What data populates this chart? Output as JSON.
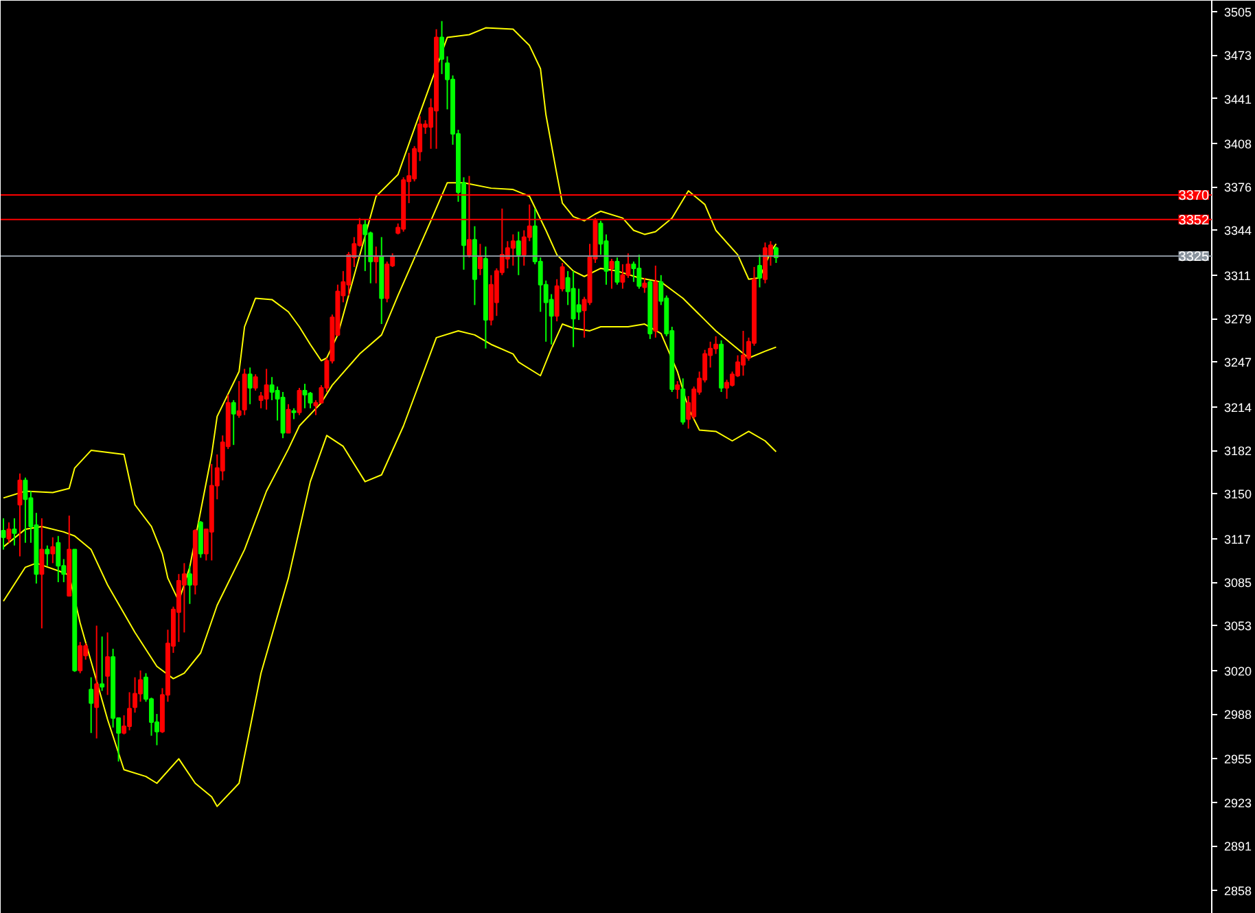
{
  "chart_data": {
    "type": "candlestick",
    "categories": [
      null,
      null,
      null,
      null,
      null,
      null,
      null,
      null,
      null,
      null,
      null,
      null,
      null,
      null,
      null,
      null,
      null,
      null,
      null,
      null,
      null,
      null,
      null,
      null,
      null,
      null,
      null,
      null,
      null,
      null,
      null,
      null,
      null,
      null,
      null,
      null,
      null,
      null,
      null,
      null,
      null,
      null,
      null,
      null,
      null,
      null,
      null,
      null,
      null,
      null,
      null,
      null,
      null,
      null,
      null,
      null,
      null,
      null,
      null,
      null,
      null,
      null,
      null,
      null,
      null,
      null,
      null,
      null,
      null,
      null,
      null,
      null,
      null,
      null,
      null,
      null,
      null,
      null,
      null,
      null,
      null,
      null,
      null,
      null,
      null,
      null,
      null,
      null,
      null,
      null,
      null,
      null,
      null,
      null,
      null,
      null,
      null,
      null,
      null,
      null,
      null,
      null,
      null,
      null,
      null,
      null,
      null,
      null,
      null,
      null,
      null,
      null,
      null,
      null,
      null,
      null,
      null,
      null,
      null,
      null,
      null,
      null,
      null,
      null,
      null,
      null,
      null,
      null,
      null,
      null,
      null,
      null,
      null,
      null,
      null,
      null,
      null,
      null,
      null,
      null,
      null,
      null,
      null,
      null,
      null,
      null,
      null,
      null,
      null,
      null,
      null,
      null,
      null,
      null,
      null,
      null,
      null,
      null,
      null,
      null,
      null,
      null,
      null,
      null,
      null,
      null,
      null,
      null,
      null,
      null,
      null,
      null,
      null,
      null,
      null,
      null,
      null,
      null,
      null,
      null,
      null,
      null,
      null,
      null,
      null,
      null,
      null,
      null,
      null,
      null,
      null,
      null,
      null,
      null,
      null,
      null,
      null,
      null,
      null,
      null,
      null,
      null,
      null,
      null,
      null,
      null,
      null,
      null,
      null,
      null,
      null,
      null,
      null,
      null,
      null,
      null,
      null,
      null,
      null,
      null,
      null
    ],
    "ohlc": [
      [
        3123,
        3132,
        3109,
        3118
      ],
      [
        3117,
        3129,
        3114,
        3124
      ],
      [
        3124,
        3132,
        3112,
        3121
      ],
      [
        3142,
        3165,
        3104,
        3160
      ],
      [
        3160,
        3162,
        3114,
        3146
      ],
      [
        3147,
        3152,
        3114,
        3126
      ],
      [
        3127,
        3136,
        3084,
        3091
      ],
      [
        3091,
        3132,
        3051,
        3109
      ],
      [
        3109,
        3112,
        3097,
        3106
      ],
      [
        3106,
        3118,
        3099,
        3111
      ],
      [
        3114,
        3119,
        3085,
        3097
      ],
      [
        3097,
        3102,
        3085,
        3091
      ],
      [
        3075,
        3134,
        3075,
        3109
      ],
      [
        3109,
        3109,
        3019,
        3020
      ],
      [
        3020,
        3041,
        3018,
        3038
      ],
      [
        3031,
        3040,
        3028,
        3038
      ],
      [
        3006,
        3015,
        2974,
        2996
      ],
      [
        2993,
        3053,
        2970,
        3010
      ],
      [
        3010,
        3045,
        3005,
        3008
      ],
      [
        3016,
        3048,
        3002,
        3030
      ],
      [
        3030,
        3036,
        2978,
        2985
      ],
      [
        2985,
        2985,
        2953,
        2974
      ],
      [
        2974,
        2987,
        2973,
        2979
      ],
      [
        2979,
        3004,
        2976,
        2992
      ],
      [
        2993,
        3015,
        2989,
        3003
      ],
      [
        3003,
        3020,
        2997,
        3013
      ],
      [
        3015,
        3018,
        2997,
        2999
      ],
      [
        2999,
        3000,
        2972,
        2982
      ],
      [
        2982,
        2988,
        2965,
        2975
      ],
      [
        2975,
        3007,
        2974,
        3002
      ],
      [
        3002,
        3050,
        2997,
        3040
      ],
      [
        3038,
        3067,
        3033,
        3065
      ],
      [
        3063,
        3091,
        3041,
        3086
      ],
      [
        3083,
        3099,
        3048,
        3091
      ],
      [
        3091,
        3097,
        3069,
        3083
      ],
      [
        3083,
        3124,
        3076,
        3123
      ],
      [
        3129,
        3130,
        3103,
        3106
      ],
      [
        3106,
        3124,
        3101,
        3124
      ],
      [
        3122,
        3172,
        3101,
        3156
      ],
      [
        3156,
        3179,
        3146,
        3169
      ],
      [
        3167,
        3193,
        3160,
        3188
      ],
      [
        3185,
        3223,
        3183,
        3217
      ],
      [
        3217,
        3219,
        3186,
        3209
      ],
      [
        3208,
        3233,
        3206,
        3211
      ],
      [
        3212,
        3242,
        3208,
        3238
      ],
      [
        3238,
        3243,
        3216,
        3228
      ],
      [
        3228,
        3238,
        3226,
        3236
      ],
      [
        3219,
        3225,
        3213,
        3222
      ],
      [
        3220,
        3242,
        3212,
        3230
      ],
      [
        3230,
        3236,
        3219,
        3225
      ],
      [
        3226,
        3229,
        3204,
        3220
      ],
      [
        3221,
        3225,
        3191,
        3195
      ],
      [
        3195,
        3216,
        3195,
        3212
      ],
      [
        3211,
        3213,
        3205,
        3210
      ],
      [
        3210,
        3228,
        3208,
        3226
      ],
      [
        3226,
        3231,
        3213,
        3223
      ],
      [
        3224,
        3225,
        3213,
        3217
      ],
      [
        3215,
        3219,
        3208,
        3217
      ],
      [
        3217,
        3230,
        3217,
        3228
      ],
      [
        3228,
        3250,
        3225,
        3248
      ],
      [
        3248,
        3282,
        3246,
        3280
      ],
      [
        3267,
        3304,
        3266,
        3299
      ],
      [
        3296,
        3314,
        3291,
        3306
      ],
      [
        3304,
        3328,
        3296,
        3326
      ],
      [
        3324,
        3339,
        3317,
        3334
      ],
      [
        3333,
        3353,
        3332,
        3348
      ],
      [
        3348,
        3352,
        3314,
        3341
      ],
      [
        3342,
        3343,
        3305,
        3321
      ],
      [
        3321,
        3332,
        3305,
        3325
      ],
      [
        3325,
        3339,
        3275,
        3294
      ],
      [
        3294,
        3321,
        3291,
        3319
      ],
      [
        3318,
        3327,
        3317,
        3325
      ],
      [
        3342,
        3349,
        3341,
        3346
      ],
      [
        3345,
        3383,
        3343,
        3381
      ],
      [
        3380,
        3401,
        3364,
        3384
      ],
      [
        3382,
        3406,
        3380,
        3404
      ],
      [
        3402,
        3428,
        3395,
        3422
      ],
      [
        3420,
        3425,
        3415,
        3422
      ],
      [
        3420,
        3441,
        3404,
        3434
      ],
      [
        3432,
        3492,
        3404,
        3486
      ],
      [
        3486,
        3498,
        3459,
        3470
      ],
      [
        3467,
        3472,
        3433,
        3455
      ],
      [
        3455,
        3458,
        3407,
        3415
      ],
      [
        3415,
        3418,
        3365,
        3372
      ],
      [
        3379,
        3383,
        3315,
        3333
      ],
      [
        3326,
        3384,
        3324,
        3337
      ],
      [
        3337,
        3347,
        3289,
        3308
      ],
      [
        3316,
        3334,
        3311,
        3324
      ],
      [
        3323,
        3332,
        3257,
        3278
      ],
      [
        3278,
        3311,
        3274,
        3304
      ],
      [
        3291,
        3316,
        3281,
        3314
      ],
      [
        3313,
        3360,
        3311,
        3326
      ],
      [
        3323,
        3336,
        3316,
        3331
      ],
      [
        3331,
        3341,
        3318,
        3336
      ],
      [
        3336,
        3343,
        3311,
        3326
      ],
      [
        3326,
        3344,
        3318,
        3339
      ],
      [
        3339,
        3363,
        3336,
        3347
      ],
      [
        3347,
        3360,
        3319,
        3321
      ],
      [
        3321,
        3324,
        3284,
        3304
      ],
      [
        3304,
        3307,
        3262,
        3291
      ],
      [
        3293,
        3297,
        3260,
        3281
      ],
      [
        3281,
        3308,
        3277,
        3303
      ],
      [
        3301,
        3320,
        3299,
        3317
      ],
      [
        3309,
        3314,
        3289,
        3299
      ],
      [
        3301,
        3314,
        3258,
        3279
      ],
      [
        3289,
        3301,
        3278,
        3284
      ],
      [
        3285,
        3295,
        3265,
        3293
      ],
      [
        3291,
        3334,
        3289,
        3324
      ],
      [
        3323,
        3353,
        3320,
        3351
      ],
      [
        3349,
        3351,
        3326,
        3334
      ],
      [
        3336,
        3341,
        3304,
        3314
      ],
      [
        3316,
        3323,
        3301,
        3321
      ],
      [
        3321,
        3324,
        3304,
        3306
      ],
      [
        3306,
        3319,
        3301,
        3311
      ],
      [
        3311,
        3327,
        3309,
        3319
      ],
      [
        3319,
        3321,
        3306,
        3316
      ],
      [
        3316,
        3326,
        3301,
        3303
      ],
      [
        3302,
        3309,
        3298,
        3305
      ],
      [
        3306,
        3307,
        3264,
        3268
      ],
      [
        3270,
        3318,
        3265,
        3306
      ],
      [
        3306,
        3311,
        3289,
        3292
      ],
      [
        3294,
        3296,
        3266,
        3268
      ],
      [
        3270,
        3273,
        3225,
        3227
      ],
      [
        3227,
        3233,
        3220,
        3230
      ],
      [
        3227,
        3235,
        3201,
        3203
      ],
      [
        3205,
        3222,
        3198,
        3217
      ],
      [
        3207,
        3229,
        3205,
        3227
      ],
      [
        3225,
        3240,
        3223,
        3235
      ],
      [
        3234,
        3256,
        3232,
        3253
      ],
      [
        3252,
        3262,
        3243,
        3257
      ],
      [
        3257,
        3266,
        3253,
        3260
      ],
      [
        3260,
        3263,
        3225,
        3228
      ],
      [
        3228,
        3234,
        3220,
        3232
      ],
      [
        3230,
        3240,
        3229,
        3238
      ],
      [
        3237,
        3252,
        3236,
        3247
      ],
      [
        3245,
        3270,
        3237,
        3252
      ],
      [
        3250,
        3265,
        3248,
        3262
      ],
      [
        3261,
        3317,
        3259,
        3308
      ],
      [
        3318,
        3326,
        3302,
        3309
      ],
      [
        3308,
        3335,
        3305,
        3331
      ],
      [
        3326,
        3336,
        3318,
        3333
      ],
      [
        3331,
        3332,
        3320,
        3324
      ],
      null,
      null,
      null,
      null,
      null,
      null,
      null,
      null,
      null,
      null,
      null,
      null,
      null,
      null,
      null,
      null,
      null,
      null,
      null,
      null,
      null,
      null,
      null,
      null,
      null,
      null,
      null,
      null,
      null,
      null,
      null,
      null,
      null,
      null,
      null,
      null,
      null,
      null,
      null,
      null,
      null,
      null,
      null,
      null,
      null,
      null,
      null,
      null,
      null,
      null,
      null,
      null,
      null,
      null,
      null,
      null,
      null,
      null,
      null,
      null,
      null,
      null,
      null,
      null,
      null,
      null,
      null,
      null,
      null,
      null,
      null,
      null,
      null,
      null,
      null,
      null,
      null,
      null,
      null
    ],
    "colors": [
      "#00ff00",
      "#ff0000",
      "#00ff00",
      "#ff0000",
      "#00ff00",
      "#00ff00",
      "#00ff00",
      "#ff0000",
      "#00ff00",
      "#ff0000",
      "#00ff00",
      "#00ff00",
      "#ff0000",
      "#00ff00",
      "#ff0000",
      "#ff0000",
      "#00ff00",
      "#ff0000",
      "#00ff00",
      "#ff0000",
      "#00ff00",
      "#00ff00",
      "#ff0000",
      "#ff0000",
      "#ff0000",
      "#ff0000",
      "#00ff00",
      "#00ff00",
      "#00ff00",
      "#ff0000",
      "#ff0000",
      "#ff0000",
      "#ff0000",
      "#ff0000",
      "#00ff00",
      "#ff0000",
      "#00ff00",
      "#ff0000",
      "#ff0000",
      "#ff0000",
      "#ff0000",
      "#ff0000",
      "#00ff00",
      "#ff0000",
      "#ff0000",
      "#00ff00",
      "#ff0000",
      "#ff0000",
      "#ff0000",
      "#00ff00",
      "#00ff00",
      "#00ff00",
      "#ff0000",
      "#00ff00",
      "#ff0000",
      "#00ff00",
      "#00ff00",
      "#ff0000",
      "#ff0000",
      "#ff0000",
      "#ff0000",
      "#ff0000",
      "#ff0000",
      "#ff0000",
      "#ff0000",
      "#ff0000",
      "#00ff00",
      "#00ff00",
      "#ff0000",
      "#00ff00",
      "#ff0000",
      "#ff0000",
      "#ff0000",
      "#ff0000",
      "#ff0000",
      "#ff0000",
      "#ff0000",
      "#ff0000",
      "#ff0000",
      "#ff0000",
      "#00ff00",
      "#00ff00",
      "#00ff00",
      "#00ff00",
      "#00ff00",
      "#ff0000",
      "#00ff00",
      "#ff0000",
      "#00ff00",
      "#ff0000",
      "#ff0000",
      "#ff0000",
      "#ff0000",
      "#ff0000",
      "#00ff00",
      "#ff0000",
      "#ff0000",
      "#00ff00",
      "#00ff00",
      "#00ff00",
      "#00ff00",
      "#ff0000",
      "#ff0000",
      "#00ff00",
      "#00ff00",
      "#00ff00",
      "#ff0000",
      "#ff0000",
      "#ff0000",
      "#00ff00",
      "#00ff00",
      "#ff0000",
      "#00ff00",
      "#ff0000",
      "#ff0000",
      "#00ff00",
      "#00ff00",
      "#ff0000",
      "#00ff00",
      "#ff0000",
      "#00ff00",
      "#00ff00",
      "#00ff00",
      "#ff0000",
      "#00ff00",
      "#ff0000",
      "#ff0000",
      "#ff0000",
      "#ff0000",
      "#ff0000",
      "#ff0000",
      "#00ff00",
      "#ff0000",
      "#ff0000",
      "#ff0000",
      "#ff0000",
      "#ff0000",
      "#ff0000",
      "#00ff00",
      "#ff0000",
      "#ff0000",
      "#00ff00",
      null,
      null,
      null,
      null,
      null,
      null,
      null,
      null,
      null,
      null,
      null,
      null,
      null,
      null,
      null,
      null,
      null,
      null,
      null,
      null,
      null,
      null,
      null,
      null,
      null,
      null,
      null,
      null,
      null,
      null,
      null,
      null,
      null,
      null,
      null,
      null,
      null,
      null,
      null,
      null,
      null,
      null,
      null,
      null,
      null,
      null,
      null,
      null,
      null,
      null,
      null,
      null,
      null,
      null,
      null,
      null,
      null,
      null,
      null,
      null,
      null,
      null,
      null,
      null,
      null,
      null,
      null,
      null,
      null,
      null,
      null,
      null,
      null,
      null,
      null,
      null,
      null,
      null,
      null
    ],
    "series": [
      {
        "type": "line",
        "color": "#ffff00",
        "values": [
          3147,
          null,
          null,
          null,
          3152,
          null,
          null,
          null,
          null,
          3151,
          null,
          null,
          3154,
          3169,
          null,
          null,
          3182,
          null,
          null,
          null,
          null,
          null,
          3179,
          null,
          3142,
          null,
          null,
          3126,
          null,
          3106,
          3088,
          null,
          3071,
          null,
          3096,
          null,
          null,
          null,
          3179,
          3207,
          null,
          null,
          null,
          3240,
          3273,
          null,
          3294,
          null,
          null,
          3293,
          null,
          null,
          3284,
          null,
          3273,
          null,
          3260,
          null,
          3248,
          3250,
          null,
          3267,
          null,
          null,
          null,
          null,
          null,
          null,
          3369,
          null,
          null,
          null,
          3385,
          null,
          null,
          3419,
          null,
          null,
          null,
          null,
          null,
          3486,
          null,
          null,
          null,
          3488,
          null,
          null,
          3493,
          null,
          null,
          null,
          null,
          3492,
          null,
          null,
          3480,
          null,
          3463,
          3429,
          null,
          3385,
          3364,
          null,
          3354,
          null,
          3351,
          null,
          3356,
          3358,
          null,
          null,
          null,
          3353,
          null,
          3344,
          null,
          3341,
          null,
          3343,
          null,
          null,
          3353,
          null,
          null,
          3373,
          null,
          null,
          3363,
          null,
          3344,
          null,
          null,
          null,
          3326,
          null,
          3308,
          null,
          3309,
          null,
          3328,
          3334,
          null,
          null,
          null,
          null,
          null,
          null,
          null,
          null,
          null,
          null,
          null,
          null,
          null,
          null,
          null,
          null,
          null,
          null,
          null,
          null,
          null,
          null,
          null,
          null,
          null,
          null,
          null,
          null,
          null,
          null,
          null,
          null,
          null,
          null,
          null,
          null,
          null,
          null,
          null,
          null,
          null,
          null,
          null,
          null,
          null,
          null,
          null,
          null,
          null,
          null,
          null,
          null,
          null,
          null,
          null,
          null,
          null,
          null,
          null,
          null,
          null,
          null,
          null,
          null,
          null,
          null,
          null,
          null,
          null,
          null,
          null,
          null,
          null,
          null,
          null,
          null,
          null,
          null,
          null
        ]
      },
      {
        "type": "line",
        "color": "#ffff00",
        "values": [
          3111,
          null,
          null,
          null,
          3124,
          null,
          null,
          3126,
          null,
          null,
          null,
          3122,
          null,
          3119,
          null,
          null,
          3109,
          null,
          null,
          3083,
          null,
          null,
          null,
          null,
          3048,
          null,
          null,
          null,
          3023,
          null,
          null,
          3014,
          null,
          3018,
          null,
          null,
          3033,
          null,
          null,
          3068,
          null,
          null,
          null,
          null,
          3109,
          null,
          null,
          null,
          3152,
          null,
          null,
          null,
          3183,
          null,
          3200,
          null,
          null,
          null,
          3217,
          null,
          3230,
          null,
          null,
          null,
          null,
          3253,
          null,
          null,
          null,
          3267,
          null,
          null,
          3296,
          null,
          null,
          null,
          null,
          null,
          3351,
          null,
          null,
          3379,
          null,
          null,
          3379,
          null,
          null,
          null,
          null,
          3375,
          null,
          null,
          null,
          3374,
          null,
          null,
          3369,
          null,
          null,
          3344,
          null,
          3326,
          null,
          null,
          3314,
          null,
          3310,
          null,
          null,
          3316,
          null,
          null,
          3314,
          null,
          null,
          null,
          3309,
          null,
          null,
          null,
          3306,
          null,
          null,
          null,
          3294,
          null,
          null,
          null,
          3278,
          null,
          3270,
          null,
          null,
          3260,
          null,
          null,
          3250,
          null,
          null,
          3255,
          null,
          3258,
          null,
          null,
          null,
          null,
          null,
          null,
          null,
          null,
          null,
          null,
          null,
          null,
          null,
          null,
          null,
          null,
          null,
          null,
          null,
          null,
          null,
          null,
          null,
          null,
          null,
          null,
          null,
          null,
          null,
          null,
          null,
          null,
          null,
          null,
          null,
          null,
          null,
          null,
          null,
          null,
          null,
          null,
          null,
          null,
          null,
          null,
          null,
          null,
          null,
          null,
          null,
          null,
          null,
          null,
          null,
          null,
          null,
          null,
          null,
          null,
          null,
          null,
          null,
          null,
          null,
          null,
          null,
          null,
          null,
          null,
          null,
          null,
          null,
          null,
          null,
          null,
          null,
          null,
          null
        ]
      },
      {
        "type": "line",
        "color": "#ffff00",
        "values": [
          3071,
          null,
          null,
          null,
          3096,
          null,
          3099,
          null,
          null,
          null,
          null,
          3092,
          3090,
          null,
          3055,
          null,
          null,
          null,
          null,
          2984,
          null,
          null,
          2947,
          null,
          null,
          null,
          2942,
          null,
          2937,
          null,
          null,
          null,
          2955,
          null,
          null,
          2937,
          null,
          null,
          2927,
          2920,
          null,
          null,
          null,
          2937,
          null,
          null,
          null,
          3018,
          null,
          null,
          null,
          null,
          3088,
          null,
          null,
          null,
          3159,
          null,
          null,
          3193,
          null,
          null,
          3185,
          null,
          null,
          null,
          3159,
          null,
          null,
          3164,
          null,
          null,
          null,
          3200,
          null,
          null,
          null,
          null,
          null,
          3265,
          null,
          null,
          null,
          3270,
          null,
          null,
          3267,
          null,
          null,
          3260,
          null,
          null,
          null,
          3253,
          3247,
          null,
          null,
          null,
          3237,
          null,
          3257,
          null,
          3275,
          null,
          3272,
          null,
          null,
          3270,
          null,
          3273,
          null,
          null,
          null,
          null,
          3273,
          null,
          null,
          3275,
          null,
          null,
          3268,
          null,
          null,
          3240,
          null,
          3213,
          null,
          3197,
          null,
          null,
          3196,
          null,
          null,
          3189,
          null,
          null,
          3196,
          null,
          null,
          3189,
          null,
          3181,
          null,
          null,
          null,
          null,
          null,
          null,
          null,
          null,
          null,
          null,
          null,
          null,
          null,
          null,
          null,
          null,
          null,
          null,
          null,
          null,
          null,
          null,
          null,
          null,
          null,
          null,
          null,
          null,
          null,
          null,
          null,
          null,
          null,
          null,
          null,
          null,
          null,
          null,
          null,
          null,
          null,
          null,
          null,
          null,
          null,
          null,
          null,
          null,
          null,
          null,
          null,
          null,
          null,
          null,
          null,
          null,
          null,
          null,
          null,
          null,
          null,
          null,
          null,
          null,
          null,
          null,
          null,
          null,
          null,
          null,
          null,
          null,
          null,
          null,
          null,
          null,
          null,
          null,
          null
        ]
      }
    ],
    "ylim": [
      2841,
      3513
    ],
    "yticks": [
      3505,
      3473,
      3441,
      3408,
      3376,
      3344,
      3311,
      3279,
      3247,
      3214,
      3182,
      3150,
      3117,
      3085,
      3053,
      3020,
      2988,
      2955,
      2923,
      2891,
      2858
    ],
    "ref_lines": [
      {
        "axis": "y",
        "value": 3370,
        "label": "3370",
        "color": "#ff0000"
      },
      {
        "axis": "y",
        "value": 3352,
        "label": "3352",
        "color": "#ff0000"
      },
      {
        "axis": "y",
        "value": 3325,
        "label": "3325",
        "color": "#8a949e"
      }
    ],
    "tick_labels": "y"
  }
}
